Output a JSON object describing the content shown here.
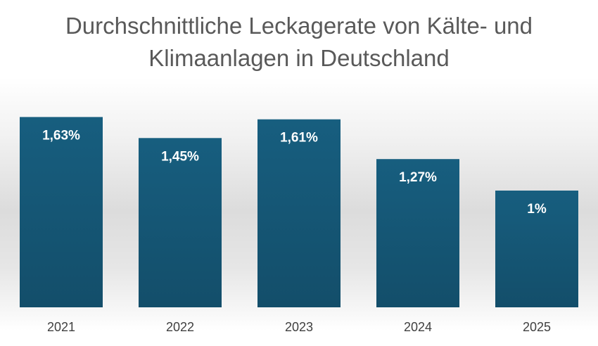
{
  "chart_data": {
    "type": "bar",
    "title": "Durchschnittliche Leckagerate von Kälte- und Klimaanlagen in Deutschland",
    "title_lines": [
      "Durchschnittliche Leckagerate von Kälte- und",
      "Klimaanlagen in Deutschland"
    ],
    "categories": [
      "2021",
      "2022",
      "2023",
      "2024",
      "2025"
    ],
    "values": [
      1.63,
      1.45,
      1.61,
      1.27,
      1
    ],
    "data_labels": [
      "1,63%",
      "1,45%",
      "1,61%",
      "1,27%",
      "1%"
    ],
    "unit": "%",
    "xlabel": "",
    "ylabel": "",
    "grid": false,
    "legend": "none",
    "bar_color": "#175E7F",
    "bar_color_dark": "#134E6A",
    "title_color": "#595959",
    "label_color": "#FFFFFF"
  }
}
